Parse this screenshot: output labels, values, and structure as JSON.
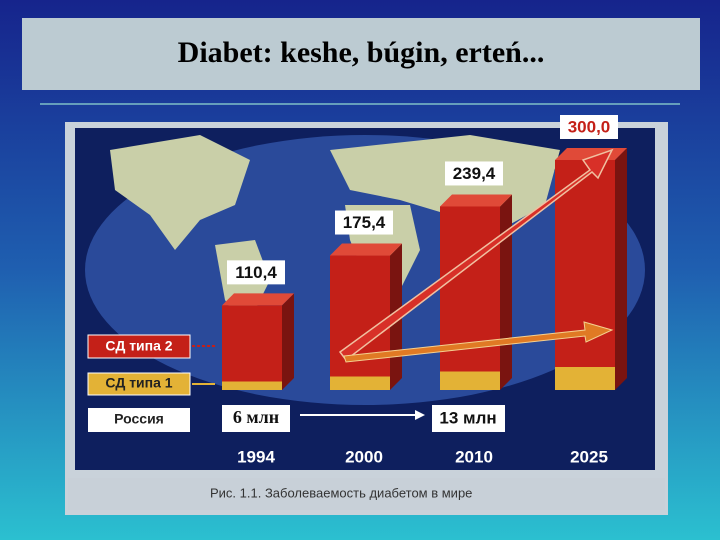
{
  "slide_title": "Diabet: keshe, búgin, erteń...",
  "chart_data": {
    "type": "bar3d",
    "categories": [
      "1994",
      "2000",
      "2010",
      "2025"
    ],
    "values": [
      110.4,
      175.4,
      239.4,
      300.0
    ],
    "value_labels": [
      "110,4",
      "175,4",
      "239,4",
      "300,0"
    ],
    "color": "#c42018",
    "base_color": "#e3b236",
    "legend": [
      "СД типа 2",
      "СД типа 1"
    ],
    "russia": {
      "label": "Россия",
      "notes": [
        "6 млн",
        "13 млн"
      ]
    },
    "caption": "Рис. 1.1. Заболеваемость диабетом в мире"
  }
}
